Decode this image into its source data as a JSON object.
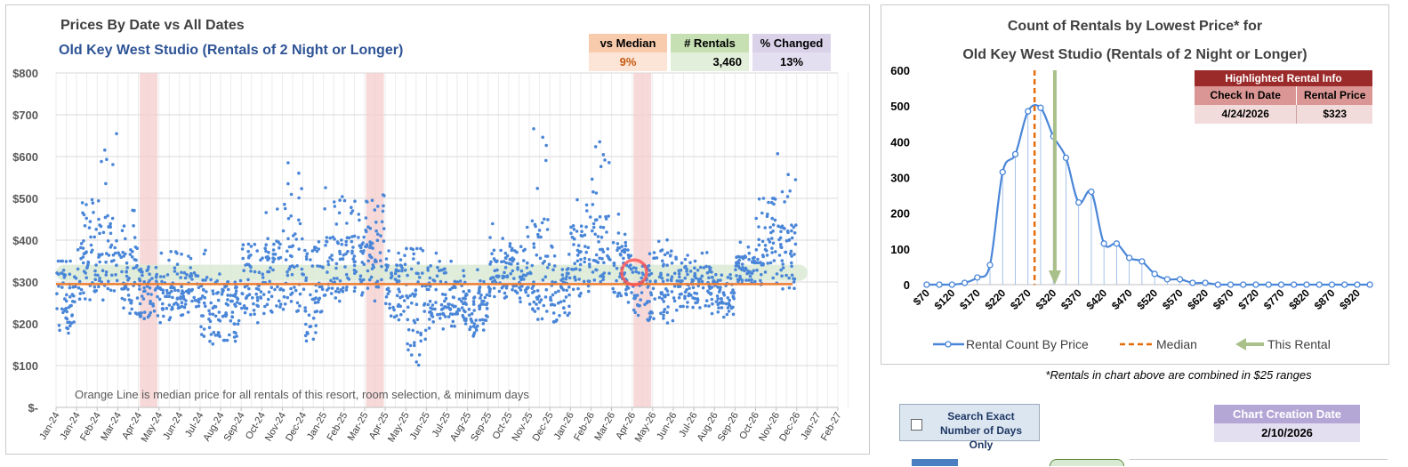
{
  "left_chart": {
    "title": "Prices By Date vs All Dates",
    "subtitle": "Old Key West Studio (Rentals of 2 Night or Longer)",
    "note": "Orange Line is median price for all rentals of this resort, room selection, & minimum days",
    "stats": {
      "vs_median_label": "vs Median",
      "vs_median_value": "9%",
      "rentals_label": "# Rentals",
      "rentals_value": "3,460",
      "changed_label": "% Changed",
      "changed_value": "13%"
    },
    "colors": {
      "points": "#4a86d8",
      "median": "#ed7d31",
      "band": "#d9ead3",
      "highlight": "#f4cccc",
      "marker": "#ff5050"
    }
  },
  "right_chart": {
    "title_line1": "Count of Rentals by Lowest Price* for",
    "title_line2": "Old Key West Studio (Rentals of 2 Night or Longer)",
    "legend": {
      "series": "Rental Count By Price",
      "median": "Median",
      "this_rental": "This Rental"
    },
    "info": {
      "title": "Highlighted Rental Info",
      "col1": "Check In Date",
      "col2": "Rental Price",
      "val1": "4/24/2026",
      "val2": "$323"
    },
    "colors": {
      "line": "#4a86d8",
      "median": "#e46c0a",
      "arrow": "#a9c08a",
      "info_header": "#9b2a2a",
      "info_sub": "#d99694",
      "info_val": "#f2dcdb"
    }
  },
  "footnote": "*Rentals in chart above are combined in $25 ranges",
  "search_exact": {
    "label": "Search Exact Number of Days Only",
    "checked": false
  },
  "creation": {
    "label": "Chart Creation Date",
    "value": "2/10/2026"
  },
  "chart_data": [
    {
      "type": "scatter",
      "title": "Prices By Date vs All Dates",
      "x_categories": [
        "Jan-24",
        "Jan-24",
        "Feb-24",
        "Mar-24",
        "Apr-24",
        "May-24",
        "Jun-24",
        "Jul-24",
        "Aug-24",
        "Sep-24",
        "Oct-24",
        "Nov-24",
        "Dec-24",
        "Jan-25",
        "Feb-25",
        "Mar-25",
        "Apr-25",
        "May-25",
        "Jun-25",
        "Jul-25",
        "Aug-25",
        "Sep-25",
        "Oct-25",
        "Nov-25",
        "Dec-25",
        "Jan-26",
        "Feb-26",
        "Mar-26",
        "Apr-26",
        "May-26",
        "Jun-26",
        "Jul-26",
        "Aug-26",
        "Sep-26",
        "Oct-26",
        "Nov-26",
        "Dec-26",
        "Jan-27",
        "Feb-27"
      ],
      "y_ticks": [
        "$-",
        "$100",
        "$200",
        "$300",
        "$400",
        "$500",
        "$600",
        "$700",
        "$800"
      ],
      "ylim": [
        0,
        800
      ],
      "median": 295,
      "band_center": 322,
      "highlight_month_index": [
        4.5,
        15.5,
        28.5
      ],
      "highlighted_point": {
        "x": "4/24/2026",
        "y": 323
      },
      "monthly_range": [
        {
          "m": "Jan-24",
          "low": 150,
          "mid": 280,
          "high": 350
        },
        {
          "m": "Feb-24",
          "low": 250,
          "mid": 330,
          "high": 550
        },
        {
          "m": "Mar-24",
          "low": 250,
          "mid": 370,
          "high": 670
        },
        {
          "m": "Apr-24",
          "low": 220,
          "mid": 310,
          "high": 500
        },
        {
          "m": "May-24",
          "low": 200,
          "mid": 280,
          "high": 360
        },
        {
          "m": "Jun-24",
          "low": 200,
          "mid": 270,
          "high": 380
        },
        {
          "m": "Jul-24",
          "low": 200,
          "mid": 270,
          "high": 380
        },
        {
          "m": "Aug-24",
          "low": 150,
          "mid": 240,
          "high": 380
        },
        {
          "m": "Sep-24",
          "low": 140,
          "mid": 230,
          "high": 320
        },
        {
          "m": "Oct-24",
          "low": 200,
          "mid": 300,
          "high": 400
        },
        {
          "m": "Nov-24",
          "low": 220,
          "mid": 320,
          "high": 480
        },
        {
          "m": "Dec-24",
          "low": 200,
          "mid": 330,
          "high": 590
        },
        {
          "m": "Jan-25",
          "low": 150,
          "mid": 280,
          "high": 400
        },
        {
          "m": "Feb-25",
          "low": 250,
          "mid": 340,
          "high": 530
        },
        {
          "m": "Mar-25",
          "low": 250,
          "mid": 340,
          "high": 500
        },
        {
          "m": "Apr-25",
          "low": 250,
          "mid": 360,
          "high": 520
        },
        {
          "m": "May-25",
          "low": 200,
          "mid": 280,
          "high": 380
        },
        {
          "m": "Jun-25",
          "low": 100,
          "mid": 270,
          "high": 380
        },
        {
          "m": "Jul-25",
          "low": 180,
          "mid": 270,
          "high": 380
        },
        {
          "m": "Aug-25",
          "low": 180,
          "mid": 250,
          "high": 350
        },
        {
          "m": "Sep-25",
          "low": 170,
          "mid": 230,
          "high": 330
        },
        {
          "m": "Oct-25",
          "low": 250,
          "mid": 310,
          "high": 440
        },
        {
          "m": "Nov-25",
          "low": 250,
          "mid": 330,
          "high": 440
        },
        {
          "m": "Dec-25",
          "low": 200,
          "mid": 340,
          "high": 670
        },
        {
          "m": "Jan-26",
          "low": 200,
          "mid": 280,
          "high": 400
        },
        {
          "m": "Feb-26",
          "low": 250,
          "mid": 350,
          "high": 500
        },
        {
          "m": "Mar-26",
          "low": 280,
          "mid": 380,
          "high": 700
        },
        {
          "m": "Apr-26",
          "low": 250,
          "mid": 330,
          "high": 490
        },
        {
          "m": "May-26",
          "low": 200,
          "mid": 280,
          "high": 390
        },
        {
          "m": "Jun-26",
          "low": 200,
          "mid": 300,
          "high": 410
        },
        {
          "m": "Jul-26",
          "low": 220,
          "mid": 300,
          "high": 380
        },
        {
          "m": "Aug-26",
          "low": 220,
          "mid": 290,
          "high": 380
        },
        {
          "m": "Sep-26",
          "low": 210,
          "mid": 270,
          "high": 320
        },
        {
          "m": "Oct-26",
          "low": 290,
          "mid": 330,
          "high": 420
        },
        {
          "m": "Nov-26",
          "low": 280,
          "mid": 410,
          "high": 500
        },
        {
          "m": "Dec-26",
          "low": 260,
          "mid": 360,
          "high": 610
        }
      ]
    },
    {
      "type": "line",
      "title": "Count of Rentals by Lowest Price* for Old Key West Studio (Rentals of 2 Night or Longer)",
      "x_ticks": [
        "$70",
        "$120",
        "$170",
        "$220",
        "$270",
        "$320",
        "$370",
        "$420",
        "$470",
        "$520",
        "$570",
        "$620",
        "$670",
        "$720",
        "$770",
        "$820",
        "$870",
        "$920"
      ],
      "x": [
        70,
        95,
        120,
        145,
        170,
        195,
        220,
        245,
        270,
        295,
        320,
        345,
        370,
        395,
        420,
        445,
        470,
        495,
        520,
        545,
        570,
        595,
        620,
        645,
        670,
        695,
        720,
        745,
        770,
        795,
        820,
        845,
        870,
        895,
        920,
        945
      ],
      "series": [
        {
          "name": "Rental Count By Price",
          "values": [
            0,
            0,
            0,
            5,
            20,
            55,
            315,
            365,
            485,
            495,
            415,
            355,
            230,
            260,
            115,
            115,
            75,
            65,
            30,
            15,
            15,
            5,
            5,
            0,
            0,
            0,
            0,
            0,
            0,
            0,
            0,
            0,
            0,
            0,
            0,
            0
          ]
        }
      ],
      "y_ticks": [
        0,
        100,
        200,
        300,
        400,
        500,
        600
      ],
      "ylim": [
        0,
        600
      ],
      "median": 283,
      "this_rental": 323
    }
  ]
}
